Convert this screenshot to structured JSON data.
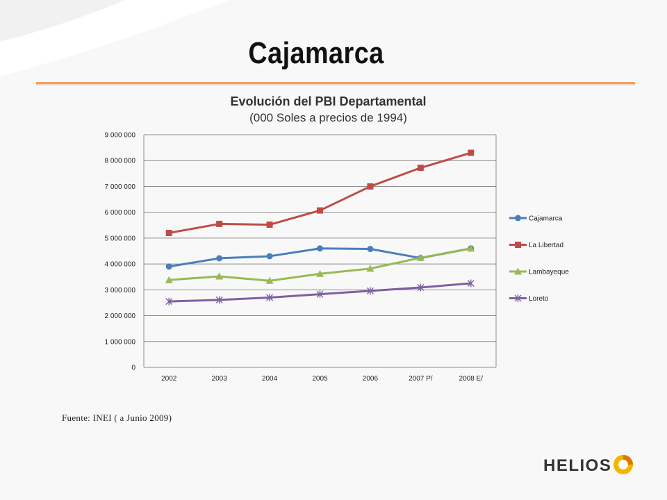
{
  "slide": {
    "title": "Cajamarca",
    "source": "Fuente: INEI ( a Junio 2009)",
    "logo_text": "HELIOS"
  },
  "colors": {
    "accent_rule": "#f0a060",
    "Cajamarca": "#4a7ebb",
    "La Libertad": "#be4b48",
    "Lambayeque": "#98b954",
    "Loreto": "#7d60a0"
  },
  "chart_data": {
    "type": "line",
    "title": "Evolución del PBI Departamental",
    "subtitle": "(000 Soles a precios de 1994)",
    "xlabel": "",
    "ylabel": "",
    "categories": [
      "2002",
      "2003",
      "2004",
      "2005",
      "2006",
      "2007 P/",
      "2008 E/"
    ],
    "ylim": [
      0,
      9000000
    ],
    "yticks": [
      0,
      1000000,
      2000000,
      3000000,
      4000000,
      5000000,
      6000000,
      7000000,
      8000000,
      9000000
    ],
    "ytick_labels": [
      "0",
      "1 000 000",
      "2 000 000",
      "3 000 000",
      "4 000 000",
      "5 000 000",
      "6 000 000",
      "7 000 000",
      "8 000 000",
      "9 000 000"
    ],
    "grid": true,
    "legend_position": "right",
    "series": [
      {
        "name": "Cajamarca",
        "marker": "circle",
        "color": "#4a7ebb",
        "values": [
          3900000,
          4220000,
          4300000,
          4600000,
          4580000,
          4230000,
          4600000
        ]
      },
      {
        "name": "La Libertad",
        "marker": "square",
        "color": "#be4b48",
        "values": [
          5200000,
          5550000,
          5520000,
          6070000,
          7000000,
          7720000,
          8300000
        ]
      },
      {
        "name": "Lambayeque",
        "marker": "triangle",
        "color": "#98b954",
        "values": [
          3380000,
          3520000,
          3350000,
          3620000,
          3820000,
          4240000,
          4600000
        ]
      },
      {
        "name": "Loreto",
        "marker": "star",
        "color": "#7d60a0",
        "values": [
          2550000,
          2610000,
          2700000,
          2830000,
          2960000,
          3090000,
          3250000
        ]
      }
    ]
  }
}
